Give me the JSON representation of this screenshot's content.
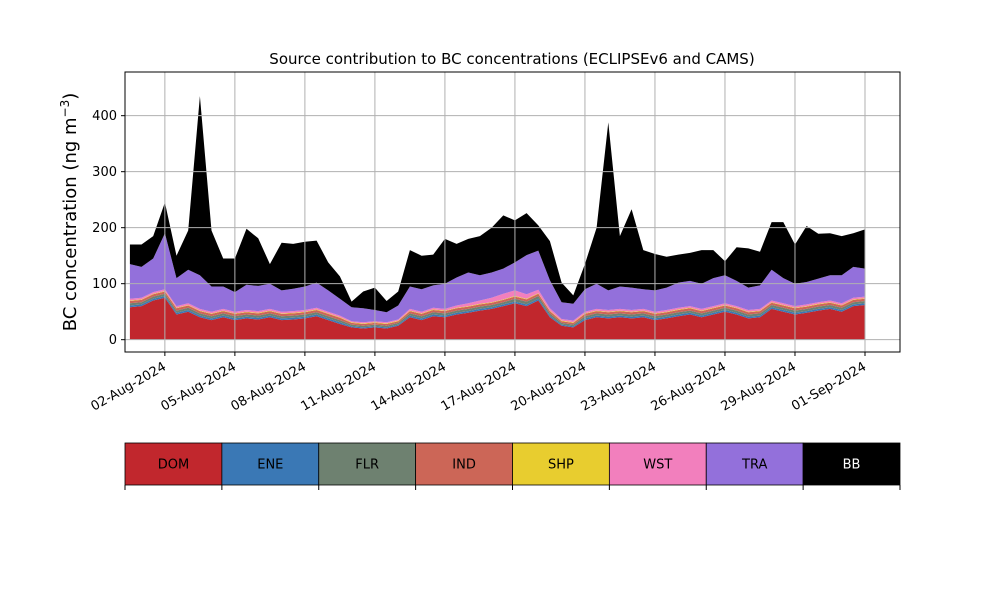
{
  "chart_data": {
    "type": "area",
    "title": "Source contribution to BC concentrations (ECLIPSEv6 and CAMS)",
    "ylabel_main": "BC concentration (ng m",
    "ylabel_exp": "−3",
    "ylabel_close": ")",
    "ylim": [
      -22,
      478
    ],
    "yticks": [
      0,
      100,
      200,
      300,
      400
    ],
    "xlim": [
      "2024-07-31T07:00",
      "2024-09-02T12:00"
    ],
    "xticks": [
      "02-Aug-2024",
      "05-Aug-2024",
      "08-Aug-2024",
      "11-Aug-2024",
      "14-Aug-2024",
      "17-Aug-2024",
      "20-Aug-2024",
      "23-Aug-2024",
      "26-Aug-2024",
      "29-Aug-2024",
      "01-Sep-2024"
    ],
    "xtick_dates": [
      "2024-08-02",
      "2024-08-05",
      "2024-08-08",
      "2024-08-11",
      "2024-08-14",
      "2024-08-17",
      "2024-08-20",
      "2024-08-23",
      "2024-08-26",
      "2024-08-29",
      "2024-09-01"
    ],
    "grid": true,
    "dates": [
      "2024-07-31T12:00",
      "2024-08-01T00:00",
      "2024-08-01T12:00",
      "2024-08-02T00:00",
      "2024-08-02T12:00",
      "2024-08-03T00:00",
      "2024-08-03T12:00",
      "2024-08-04T00:00",
      "2024-08-04T12:00",
      "2024-08-05T00:00",
      "2024-08-05T12:00",
      "2024-08-06T00:00",
      "2024-08-06T12:00",
      "2024-08-07T00:00",
      "2024-08-07T12:00",
      "2024-08-08T00:00",
      "2024-08-08T12:00",
      "2024-08-09T00:00",
      "2024-08-09T12:00",
      "2024-08-10T00:00",
      "2024-08-10T12:00",
      "2024-08-11T00:00",
      "2024-08-11T12:00",
      "2024-08-12T00:00",
      "2024-08-12T12:00",
      "2024-08-13T00:00",
      "2024-08-13T12:00",
      "2024-08-14T00:00",
      "2024-08-14T12:00",
      "2024-08-15T00:00",
      "2024-08-15T12:00",
      "2024-08-16T00:00",
      "2024-08-16T12:00",
      "2024-08-17T00:00",
      "2024-08-17T12:00",
      "2024-08-18T00:00",
      "2024-08-18T12:00",
      "2024-08-19T00:00",
      "2024-08-19T12:00",
      "2024-08-20T00:00",
      "2024-08-20T12:00",
      "2024-08-21T00:00",
      "2024-08-21T12:00",
      "2024-08-22T00:00",
      "2024-08-22T12:00",
      "2024-08-23T00:00",
      "2024-08-23T12:00",
      "2024-08-24T00:00",
      "2024-08-24T12:00",
      "2024-08-25T00:00",
      "2024-08-25T12:00",
      "2024-08-26T00:00",
      "2024-08-26T12:00",
      "2024-08-27T00:00",
      "2024-08-27T12:00",
      "2024-08-28T00:00",
      "2024-08-28T12:00",
      "2024-08-29T00:00",
      "2024-08-29T12:00",
      "2024-08-30T00:00",
      "2024-08-30T12:00",
      "2024-08-31T00:00",
      "2024-08-31T12:00",
      "2024-09-01T00:00"
    ],
    "series": [
      {
        "name": "DOM",
        "color": "#c1272d",
        "values": [
          58,
          60,
          70,
          75,
          45,
          50,
          40,
          35,
          40,
          35,
          38,
          36,
          40,
          35,
          36,
          38,
          42,
          35,
          28,
          22,
          20,
          22,
          20,
          25,
          40,
          35,
          42,
          40,
          45,
          48,
          52,
          55,
          60,
          65,
          60,
          70,
          40,
          25,
          22,
          35,
          40,
          38,
          40,
          38,
          40,
          35,
          38,
          42,
          45,
          40,
          45,
          50,
          45,
          38,
          40,
          55,
          50,
          45,
          48,
          52,
          55,
          50,
          60,
          62
        ]
      },
      {
        "name": "ENE",
        "color": "#3a78b5",
        "values": [
          3,
          3,
          3,
          3,
          3,
          3,
          3,
          3,
          3,
          3,
          3,
          3,
          3,
          3,
          3,
          3,
          3,
          3,
          3,
          2,
          2,
          2,
          2,
          2,
          3,
          3,
          3,
          3,
          3,
          3,
          3,
          3,
          3,
          3,
          3,
          3,
          3,
          2,
          2,
          3,
          3,
          3,
          3,
          3,
          3,
          3,
          3,
          3,
          3,
          3,
          3,
          3,
          3,
          3,
          3,
          3,
          3,
          3,
          3,
          3,
          3,
          3,
          3,
          3
        ]
      },
      {
        "name": "FLR",
        "color": "#6e8170",
        "values": [
          4,
          4,
          4,
          4,
          4,
          4,
          4,
          4,
          4,
          4,
          4,
          4,
          4,
          4,
          4,
          4,
          4,
          4,
          4,
          3,
          3,
          3,
          3,
          3,
          4,
          4,
          4,
          4,
          4,
          4,
          4,
          4,
          4,
          5,
          5,
          5,
          4,
          3,
          3,
          4,
          4,
          4,
          4,
          4,
          4,
          4,
          4,
          4,
          4,
          4,
          4,
          4,
          4,
          4,
          4,
          4,
          4,
          4,
          4,
          4,
          4,
          4,
          4,
          4
        ]
      },
      {
        "name": "IND",
        "color": "#cc6657",
        "values": [
          4,
          4,
          4,
          4,
          4,
          4,
          4,
          4,
          4,
          4,
          4,
          4,
          4,
          4,
          4,
          4,
          4,
          4,
          4,
          3,
          3,
          3,
          3,
          3,
          4,
          4,
          4,
          4,
          4,
          4,
          4,
          4,
          4,
          4,
          4,
          4,
          4,
          3,
          3,
          4,
          4,
          4,
          4,
          4,
          4,
          4,
          4,
          4,
          4,
          4,
          4,
          4,
          4,
          4,
          4,
          4,
          4,
          4,
          4,
          4,
          4,
          4,
          4,
          4
        ]
      },
      {
        "name": "SHP",
        "color": "#e8cd2f",
        "values": [
          1,
          1,
          1,
          1,
          1,
          1,
          1,
          1,
          1,
          1,
          1,
          1,
          1,
          1,
          1,
          1,
          1,
          1,
          1,
          1,
          1,
          1,
          1,
          1,
          1,
          1,
          1,
          1,
          1,
          1,
          1,
          1,
          1,
          1,
          1,
          1,
          1,
          1,
          1,
          1,
          1,
          1,
          1,
          1,
          1,
          1,
          1,
          1,
          1,
          1,
          1,
          1,
          1,
          1,
          1,
          1,
          1,
          1,
          1,
          1,
          1,
          1,
          1,
          1
        ]
      },
      {
        "name": "WST",
        "color": "#f27fbd",
        "values": [
          3,
          3,
          3,
          3,
          3,
          3,
          3,
          3,
          3,
          3,
          3,
          3,
          3,
          3,
          3,
          3,
          3,
          3,
          3,
          2,
          2,
          2,
          2,
          2,
          3,
          3,
          3,
          3,
          4,
          5,
          6,
          8,
          10,
          10,
          8,
          6,
          4,
          3,
          3,
          3,
          3,
          3,
          3,
          3,
          3,
          3,
          3,
          3,
          3,
          3,
          3,
          3,
          3,
          3,
          3,
          3,
          3,
          3,
          3,
          3,
          3,
          3,
          3,
          3
        ]
      },
      {
        "name": "TRA",
        "color": "#9370db",
        "values": [
          62,
          55,
          60,
          100,
          50,
          60,
          60,
          45,
          40,
          35,
          45,
          45,
          45,
          38,
          40,
          42,
          45,
          38,
          30,
          25,
          25,
          20,
          18,
          25,
          40,
          40,
          40,
          45,
          50,
          55,
          45,
          45,
          45,
          50,
          70,
          70,
          50,
          30,
          30,
          40,
          45,
          35,
          40,
          40,
          35,
          38,
          40,
          45,
          45,
          45,
          50,
          50,
          45,
          40,
          42,
          55,
          45,
          40,
          40,
          42,
          45,
          50,
          55,
          50
        ]
      },
      {
        "name": "BB",
        "color": "#000000",
        "values": [
          35,
          40,
          40,
          55,
          40,
          70,
          320,
          100,
          50,
          60,
          100,
          85,
          35,
          85,
          80,
          80,
          75,
          50,
          40,
          10,
          30,
          40,
          20,
          25,
          65,
          60,
          55,
          80,
          60,
          60,
          70,
          80,
          95,
          75,
          75,
          45,
          70,
          35,
          15,
          45,
          100,
          300,
          90,
          140,
          70,
          65,
          55,
          50,
          50,
          60,
          50,
          25,
          60,
          70,
          60,
          85,
          100,
          70,
          100,
          80,
          75,
          70,
          60,
          70
        ]
      }
    ]
  }
}
